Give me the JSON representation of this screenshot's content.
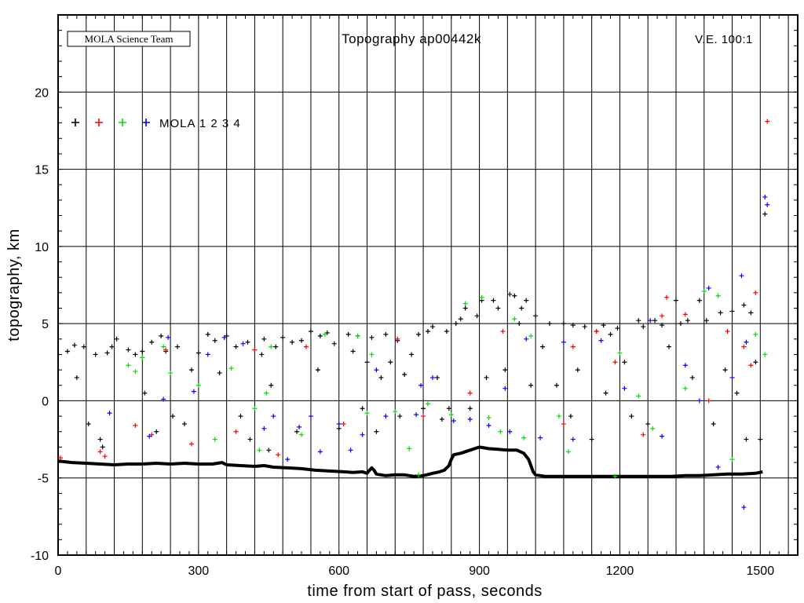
{
  "chart_data": {
    "type": "scatter",
    "title": "Topography ap00442k",
    "team_label": "MOLA Science Team",
    "ve_label": "V.E. 100:1",
    "xlabel": "time from start of pass, seconds",
    "ylabel": "topography, km",
    "xlim": [
      0,
      1580
    ],
    "ylim": [
      -10,
      25
    ],
    "xticks": [
      0,
      300,
      600,
      900,
      1200,
      1500
    ],
    "yticks": [
      -10,
      -5,
      0,
      5,
      10,
      15,
      20
    ],
    "grid": true,
    "legend": {
      "placement": "top-left",
      "label": "MOLA 1 2 3 4",
      "colors": [
        "#000000",
        "#ff0000",
        "#00e000",
        "#0000ff"
      ]
    },
    "series": [
      {
        "color": "#000000",
        "points": [
          [
            20,
            3.2
          ],
          [
            35,
            3.6
          ],
          [
            40,
            1.5
          ],
          [
            55,
            3.5
          ],
          [
            65,
            -1.5
          ],
          [
            80,
            3.0
          ],
          [
            90,
            -2.5
          ],
          [
            95,
            -3.0
          ],
          [
            105,
            3.1
          ],
          [
            115,
            3.5
          ],
          [
            125,
            4.0
          ],
          [
            150,
            3.3
          ],
          [
            165,
            3.0
          ],
          [
            180,
            3.2
          ],
          [
            185,
            0.5
          ],
          [
            200,
            3.8
          ],
          [
            210,
            -2.0
          ],
          [
            220,
            4.2
          ],
          [
            230,
            3.2
          ],
          [
            245,
            -1.0
          ],
          [
            255,
            3.5
          ],
          [
            270,
            -1.5
          ],
          [
            285,
            2.0
          ],
          [
            300,
            3.1
          ],
          [
            320,
            4.3
          ],
          [
            335,
            3.9
          ],
          [
            345,
            1.8
          ],
          [
            360,
            4.2
          ],
          [
            380,
            3.5
          ],
          [
            390,
            -1.0
          ],
          [
            405,
            3.8
          ],
          [
            410,
            -2.5
          ],
          [
            420,
            3.3
          ],
          [
            435,
            3.0
          ],
          [
            440,
            4.0
          ],
          [
            450,
            -3.2
          ],
          [
            455,
            1.0
          ],
          [
            465,
            3.5
          ],
          [
            480,
            4.1
          ],
          [
            500,
            3.8
          ],
          [
            510,
            -2.0
          ],
          [
            520,
            3.9
          ],
          [
            540,
            4.5
          ],
          [
            555,
            2.0
          ],
          [
            560,
            4.2
          ],
          [
            575,
            4.4
          ],
          [
            590,
            3.7
          ],
          [
            600,
            -1.8
          ],
          [
            620,
            4.3
          ],
          [
            630,
            3.2
          ],
          [
            640,
            4.2
          ],
          [
            650,
            -0.5
          ],
          [
            660,
            2.5
          ],
          [
            670,
            4.1
          ],
          [
            680,
            -2.0
          ],
          [
            690,
            1.5
          ],
          [
            700,
            4.3
          ],
          [
            710,
            2.5
          ],
          [
            725,
            3.9
          ],
          [
            730,
            -1.0
          ],
          [
            740,
            1.7
          ],
          [
            755,
            3.0
          ],
          [
            770,
            4.3
          ],
          [
            780,
            -0.5
          ],
          [
            790,
            4.5
          ],
          [
            800,
            4.8
          ],
          [
            810,
            1.5
          ],
          [
            820,
            -1.2
          ],
          [
            830,
            4.5
          ],
          [
            835,
            -0.5
          ],
          [
            850,
            5.0
          ],
          [
            860,
            5.3
          ],
          [
            870,
            6.0
          ],
          [
            880,
            -0.5
          ],
          [
            895,
            5.5
          ],
          [
            905,
            6.5
          ],
          [
            915,
            1.5
          ],
          [
            930,
            6.5
          ],
          [
            940,
            6.0
          ],
          [
            955,
            2.0
          ],
          [
            965,
            6.9
          ],
          [
            975,
            6.8
          ],
          [
            985,
            5.0
          ],
          [
            990,
            6.0
          ],
          [
            1000,
            6.5
          ],
          [
            1010,
            1.0
          ],
          [
            1020,
            5.5
          ],
          [
            1035,
            3.5
          ],
          [
            1050,
            5.0
          ],
          [
            1065,
            1.0
          ],
          [
            1080,
            5.0
          ],
          [
            1095,
            -1.0
          ],
          [
            1100,
            4.9
          ],
          [
            1110,
            2.0
          ],
          [
            1125,
            4.8
          ],
          [
            1140,
            -2.5
          ],
          [
            1150,
            4.5
          ],
          [
            1165,
            4.9
          ],
          [
            1170,
            0.5
          ],
          [
            1180,
            4.3
          ],
          [
            1195,
            4.7
          ],
          [
            1210,
            2.5
          ],
          [
            1225,
            -1.0
          ],
          [
            1240,
            5.2
          ],
          [
            1250,
            4.8
          ],
          [
            1260,
            -1.5
          ],
          [
            1275,
            5.2
          ],
          [
            1290,
            4.9
          ],
          [
            1305,
            3.5
          ],
          [
            1320,
            6.5
          ],
          [
            1330,
            5.0
          ],
          [
            1345,
            5.2
          ],
          [
            1355,
            1.5
          ],
          [
            1370,
            6.5
          ],
          [
            1385,
            5.2
          ],
          [
            1400,
            -1.5
          ],
          [
            1415,
            5.7
          ],
          [
            1425,
            2.0
          ],
          [
            1440,
            5.8
          ],
          [
            1450,
            0.5
          ],
          [
            1465,
            6.2
          ],
          [
            1470,
            -2.5
          ],
          [
            1480,
            5.7
          ],
          [
            1490,
            2.5
          ],
          [
            1500,
            -2.5
          ],
          [
            1510,
            12.1
          ]
        ]
      },
      {
        "color": "#ff0000",
        "points": [
          [
            5,
            -3.7
          ],
          [
            90,
            -3.3
          ],
          [
            100,
            -3.6
          ],
          [
            165,
            -1.6
          ],
          [
            200,
            -2.2
          ],
          [
            230,
            3.3
          ],
          [
            285,
            -2.8
          ],
          [
            380,
            -2.0
          ],
          [
            420,
            3.3
          ],
          [
            470,
            -3.5
          ],
          [
            530,
            3.5
          ],
          [
            610,
            -1.5
          ],
          [
            725,
            4.0
          ],
          [
            780,
            -1.0
          ],
          [
            880,
            0.5
          ],
          [
            950,
            4.5
          ],
          [
            1080,
            -1.5
          ],
          [
            1100,
            3.5
          ],
          [
            1150,
            4.5
          ],
          [
            1190,
            2.5
          ],
          [
            1250,
            -2.2
          ],
          [
            1290,
            5.5
          ],
          [
            1300,
            6.7
          ],
          [
            1340,
            5.6
          ],
          [
            1390,
            0.0
          ],
          [
            1430,
            4.5
          ],
          [
            1465,
            3.5
          ],
          [
            1480,
            2.3
          ],
          [
            1490,
            7.0
          ],
          [
            1515,
            18.1
          ]
        ]
      },
      {
        "color": "#00e000",
        "points": [
          [
            150,
            2.3
          ],
          [
            165,
            1.9
          ],
          [
            180,
            2.8
          ],
          [
            225,
            3.5
          ],
          [
            240,
            1.8
          ],
          [
            300,
            1.0
          ],
          [
            335,
            -2.5
          ],
          [
            370,
            2.1
          ],
          [
            420,
            -0.5
          ],
          [
            430,
            -3.2
          ],
          [
            445,
            0.5
          ],
          [
            455,
            3.5
          ],
          [
            520,
            -2.2
          ],
          [
            570,
            4.3
          ],
          [
            640,
            4.2
          ],
          [
            660,
            -0.8
          ],
          [
            670,
            3.0
          ],
          [
            720,
            -0.7
          ],
          [
            750,
            -3.1
          ],
          [
            770,
            -4.8
          ],
          [
            790,
            -0.2
          ],
          [
            840,
            -0.9
          ],
          [
            870,
            6.3
          ],
          [
            905,
            6.7
          ],
          [
            920,
            -1.1
          ],
          [
            945,
            -2.0
          ],
          [
            975,
            5.3
          ],
          [
            995,
            -2.4
          ],
          [
            1010,
            4.2
          ],
          [
            1070,
            -1.0
          ],
          [
            1090,
            -3.3
          ],
          [
            1190,
            -4.9
          ],
          [
            1200,
            3.1
          ],
          [
            1240,
            0.3
          ],
          [
            1270,
            -1.8
          ],
          [
            1340,
            0.8
          ],
          [
            1380,
            7.1
          ],
          [
            1410,
            6.8
          ],
          [
            1440,
            -3.8
          ],
          [
            1490,
            4.3
          ],
          [
            1510,
            3.0
          ]
        ]
      },
      {
        "color": "#0000ff",
        "points": [
          [
            110,
            -0.8
          ],
          [
            195,
            -2.3
          ],
          [
            225,
            0.1
          ],
          [
            235,
            4.1
          ],
          [
            290,
            0.6
          ],
          [
            320,
            3.0
          ],
          [
            355,
            4.1
          ],
          [
            395,
            3.7
          ],
          [
            440,
            -1.8
          ],
          [
            460,
            -1.0
          ],
          [
            490,
            -3.8
          ],
          [
            515,
            -1.7
          ],
          [
            540,
            -1.0
          ],
          [
            560,
            -3.3
          ],
          [
            600,
            -1.5
          ],
          [
            625,
            -3.2
          ],
          [
            650,
            -2.2
          ],
          [
            680,
            2.0
          ],
          [
            700,
            -1.0
          ],
          [
            765,
            -0.9
          ],
          [
            775,
            1.0
          ],
          [
            800,
            1.5
          ],
          [
            845,
            -1.3
          ],
          [
            880,
            -1.2
          ],
          [
            920,
            -1.6
          ],
          [
            955,
            0.8
          ],
          [
            965,
            -2.0
          ],
          [
            1000,
            4.0
          ],
          [
            1030,
            -2.4
          ],
          [
            1080,
            3.8
          ],
          [
            1100,
            -2.5
          ],
          [
            1160,
            3.9
          ],
          [
            1210,
            0.8
          ],
          [
            1265,
            5.2
          ],
          [
            1290,
            -2.3
          ],
          [
            1340,
            2.3
          ],
          [
            1370,
            0.0
          ],
          [
            1390,
            7.3
          ],
          [
            1410,
            -4.3
          ],
          [
            1440,
            1.5
          ],
          [
            1460,
            8.1
          ],
          [
            1465,
            -6.9
          ],
          [
            1470,
            3.8
          ],
          [
            1510,
            13.2
          ],
          [
            1515,
            12.7
          ]
        ]
      }
    ],
    "ground_track": [
      [
        0,
        -3.9
      ],
      [
        30,
        -4.0
      ],
      [
        60,
        -4.05
      ],
      [
        90,
        -4.1
      ],
      [
        120,
        -4.15
      ],
      [
        150,
        -4.1
      ],
      [
        180,
        -4.1
      ],
      [
        210,
        -4.05
      ],
      [
        240,
        -4.1
      ],
      [
        270,
        -4.05
      ],
      [
        300,
        -4.1
      ],
      [
        330,
        -4.1
      ],
      [
        350,
        -4.0
      ],
      [
        360,
        -4.15
      ],
      [
        390,
        -4.2
      ],
      [
        420,
        -4.25
      ],
      [
        440,
        -4.2
      ],
      [
        460,
        -4.3
      ],
      [
        490,
        -4.35
      ],
      [
        520,
        -4.4
      ],
      [
        550,
        -4.5
      ],
      [
        580,
        -4.55
      ],
      [
        610,
        -4.6
      ],
      [
        630,
        -4.65
      ],
      [
        650,
        -4.6
      ],
      [
        660,
        -4.7
      ],
      [
        665,
        -4.5
      ],
      [
        670,
        -4.35
      ],
      [
        675,
        -4.5
      ],
      [
        680,
        -4.75
      ],
      [
        700,
        -4.85
      ],
      [
        720,
        -4.8
      ],
      [
        740,
        -4.8
      ],
      [
        760,
        -4.9
      ],
      [
        780,
        -4.85
      ],
      [
        800,
        -4.7
      ],
      [
        815,
        -4.6
      ],
      [
        825,
        -4.5
      ],
      [
        835,
        -4.2
      ],
      [
        840,
        -3.8
      ],
      [
        845,
        -3.5
      ],
      [
        860,
        -3.4
      ],
      [
        880,
        -3.2
      ],
      [
        900,
        -3.0
      ],
      [
        920,
        -3.1
      ],
      [
        940,
        -3.15
      ],
      [
        960,
        -3.2
      ],
      [
        980,
        -3.2
      ],
      [
        995,
        -3.4
      ],
      [
        1005,
        -3.8
      ],
      [
        1010,
        -4.2
      ],
      [
        1015,
        -4.6
      ],
      [
        1020,
        -4.8
      ],
      [
        1040,
        -4.9
      ],
      [
        1070,
        -4.9
      ],
      [
        1100,
        -4.9
      ],
      [
        1130,
        -4.9
      ],
      [
        1160,
        -4.9
      ],
      [
        1190,
        -4.9
      ],
      [
        1220,
        -4.9
      ],
      [
        1250,
        -4.9
      ],
      [
        1280,
        -4.9
      ],
      [
        1310,
        -4.9
      ],
      [
        1340,
        -4.85
      ],
      [
        1370,
        -4.85
      ],
      [
        1400,
        -4.8
      ],
      [
        1430,
        -4.75
      ],
      [
        1460,
        -4.75
      ],
      [
        1490,
        -4.7
      ],
      [
        1505,
        -4.6
      ]
    ]
  }
}
